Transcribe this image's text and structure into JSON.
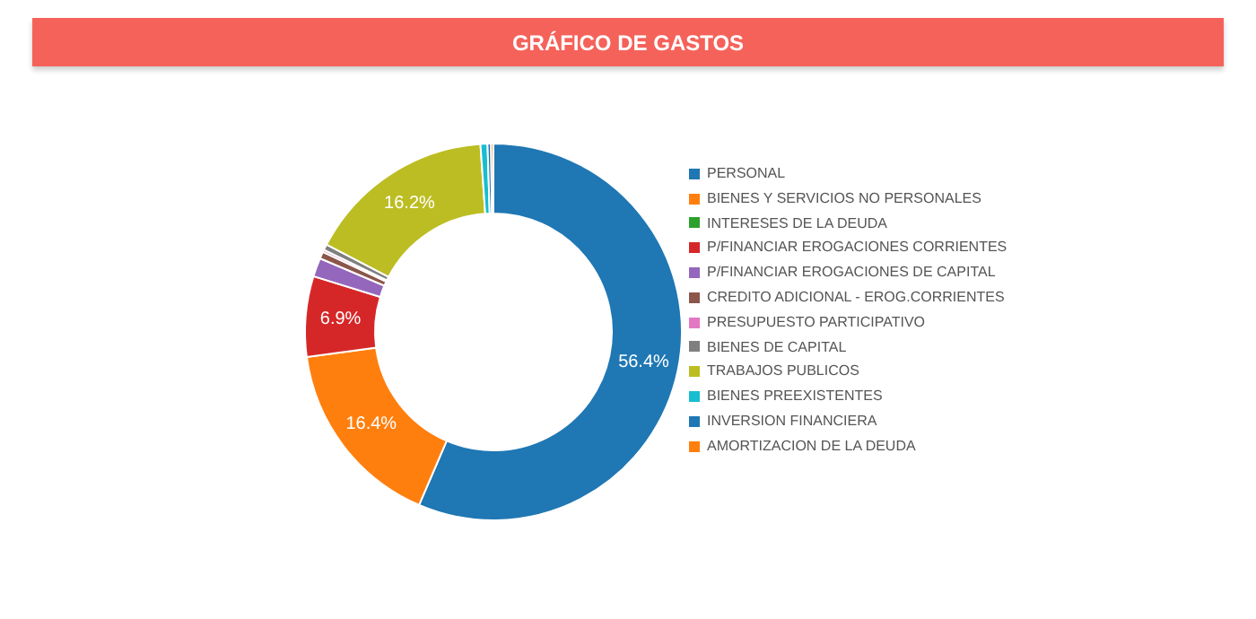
{
  "chart_data": {
    "type": "donut",
    "title": "GRÁFICO DE GASTOS",
    "categories": [
      "PERSONAL",
      "BIENES Y SERVICIOS NO PERSONALES",
      "INTERESES DE LA DEUDA",
      "P/FINANCIAR EROGACIONES CORRIENTES",
      "P/FINANCIAR EROGACIONES DE CAPITAL",
      "CREDITO ADICIONAL - EROG.CORRIENTES",
      "PRESUPUESTO PARTICIPATIVO",
      "BIENES DE CAPITAL",
      "TRABAJOS PUBLICOS",
      "BIENES PREEXISTENTES",
      "INVERSION FINANCIERA",
      "AMORTIZACION DE LA DEUDA"
    ],
    "values": [
      56.4,
      16.4,
      null,
      6.9,
      1.6,
      0.6,
      0.2,
      0.5,
      16.2,
      0.6,
      0.3,
      0.2
    ],
    "colors": [
      "#1f77b4",
      "#ff7f0e",
      "#2ca02c",
      "#d62728",
      "#9467bd",
      "#8c564b",
      "#e377c2",
      "#7f7f7f",
      "#bcbd22",
      "#17becf",
      "#1f77b4",
      "#ff7f0e"
    ],
    "value_labels": [
      "56.4%",
      "16.4%",
      null,
      "6.9%",
      null,
      null,
      null,
      null,
      "16.2%",
      null,
      null,
      null
    ],
    "legend": "right"
  }
}
